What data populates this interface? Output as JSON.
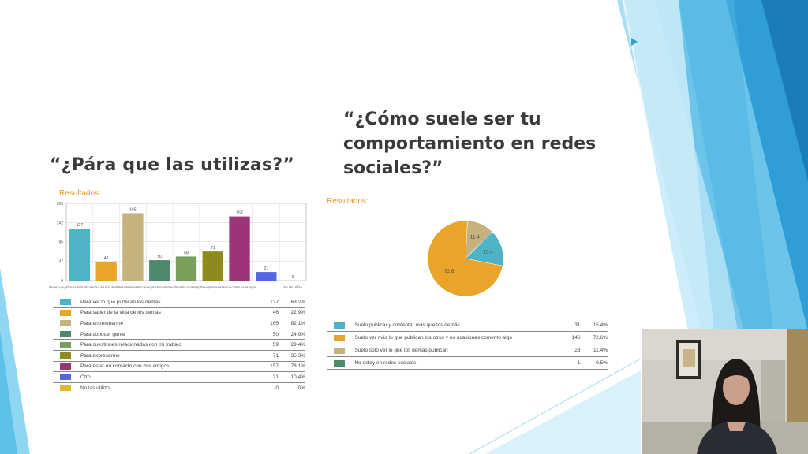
{
  "slide": {
    "title_left": "“¿Pára que las utilizas?”",
    "title_right_lines": [
      "“¿Cómo suele ser tu",
      "comportamiento en redes",
      "sociales?”"
    ]
  },
  "left_block": {
    "results_label": "Resultados:",
    "legend": [
      {
        "label": "Para ver lo que publican los demás",
        "count": "127",
        "percent": "63.2%",
        "color": "#4eb3c5"
      },
      {
        "label": "Para saber de la vida de los demás",
        "count": "46",
        "percent": "22.9%",
        "color": "#eba42a"
      },
      {
        "label": "Para entretenerme",
        "count": "165",
        "percent": "82.1%",
        "color": "#c5b27e"
      },
      {
        "label": "Para conocer gente",
        "count": "50",
        "percent": "24.9%",
        "color": "#4c8a6b"
      },
      {
        "label": "Para cuestiones relacionadas con mi trabajo",
        "count": "59",
        "percent": "29.4%",
        "color": "#7a9e5c"
      },
      {
        "label": "Para expresarme",
        "count": "71",
        "percent": "35.3%",
        "color": "#8e8a1c"
      },
      {
        "label": "Para estar en contacto con mis amigos",
        "count": "157",
        "percent": "78.1%",
        "color": "#9b3577"
      },
      {
        "label": "Otro",
        "count": "21",
        "percent": "10.4%",
        "color": "#5566e0"
      },
      {
        "label": "No las utilizo",
        "count": "0",
        "percent": "0%",
        "color": "#e0b82c"
      }
    ]
  },
  "chart_data": [
    {
      "type": "bar",
      "categories": [
        "Para ver lo que publican los demás",
        "Para saber de la vida de los demás",
        "Para entretenerme",
        "Para conocer gente",
        "Para cuestiones relacionadas con mi trabajo",
        "Para expresarme",
        "Para estar en contacto con mis amigos",
        "Otro",
        "No las utilizo"
      ],
      "values": [
        127,
        46,
        165,
        50,
        59,
        71,
        157,
        21,
        0
      ],
      "colors": [
        "#4eb3c5",
        "#eba42a",
        "#c5b27e",
        "#4c8a6b",
        "#7a9e5c",
        "#8e8a1c",
        "#9b3577",
        "#5566e0",
        "#e0b82c"
      ],
      "yticks": [
        0,
        47,
        95,
        142,
        189
      ],
      "ylim": [
        0,
        189
      ],
      "xtick_text": "Para ver lo que publican los demás   Para saber de la vida de los demás   Para entretenerme   Para conocer gente   Para cuestiones relacionadas con mi trabajo   Para expresarme   Para estar en contacto con mis amigos",
      "xtick_last": "No las utilizo",
      "grid": true
    },
    {
      "type": "pie",
      "categories": [
        "Suelo publicar y comentar más que los demás",
        "Suelo ver más lo que publican los otros y en ocasiones comento algo",
        "Suelo sólo ver lo que los demás publican",
        "No estoy en redes sociales"
      ],
      "values": [
        15.4,
        72.6,
        11.4,
        0.5
      ],
      "colors": [
        "#4eb3c5",
        "#eba42a",
        "#c5b27e",
        "#4c8a6b"
      ],
      "data_labels": [
        "15.4",
        "72.6",
        "11.4",
        ""
      ]
    }
  ],
  "right_block": {
    "results_label": "Resultados:",
    "legend": [
      {
        "label": "Suelo publicar y comentar más que los demás",
        "count": "31",
        "percent": "15.4%",
        "color": "#4eb3c5"
      },
      {
        "label": "Suelo ver más lo que publican los otros y en ocasiones comento algo",
        "count": "146",
        "percent": "72.6%",
        "color": "#eba42a"
      },
      {
        "label": "Suelo sólo ver lo que los demás publican",
        "count": "23",
        "percent": "11.4%",
        "color": "#c5b27e"
      },
      {
        "label": "No estoy en redes sociales",
        "count": "1",
        "percent": "0.5%",
        "color": "#4c8a6b"
      }
    ]
  },
  "theme": {
    "accent_light": "#8fd3ef",
    "accent_mid": "#3aa8da",
    "accent_dark": "#1b7fb8",
    "title_color": "#3a3a3a",
    "results_color": "#e8941f"
  }
}
